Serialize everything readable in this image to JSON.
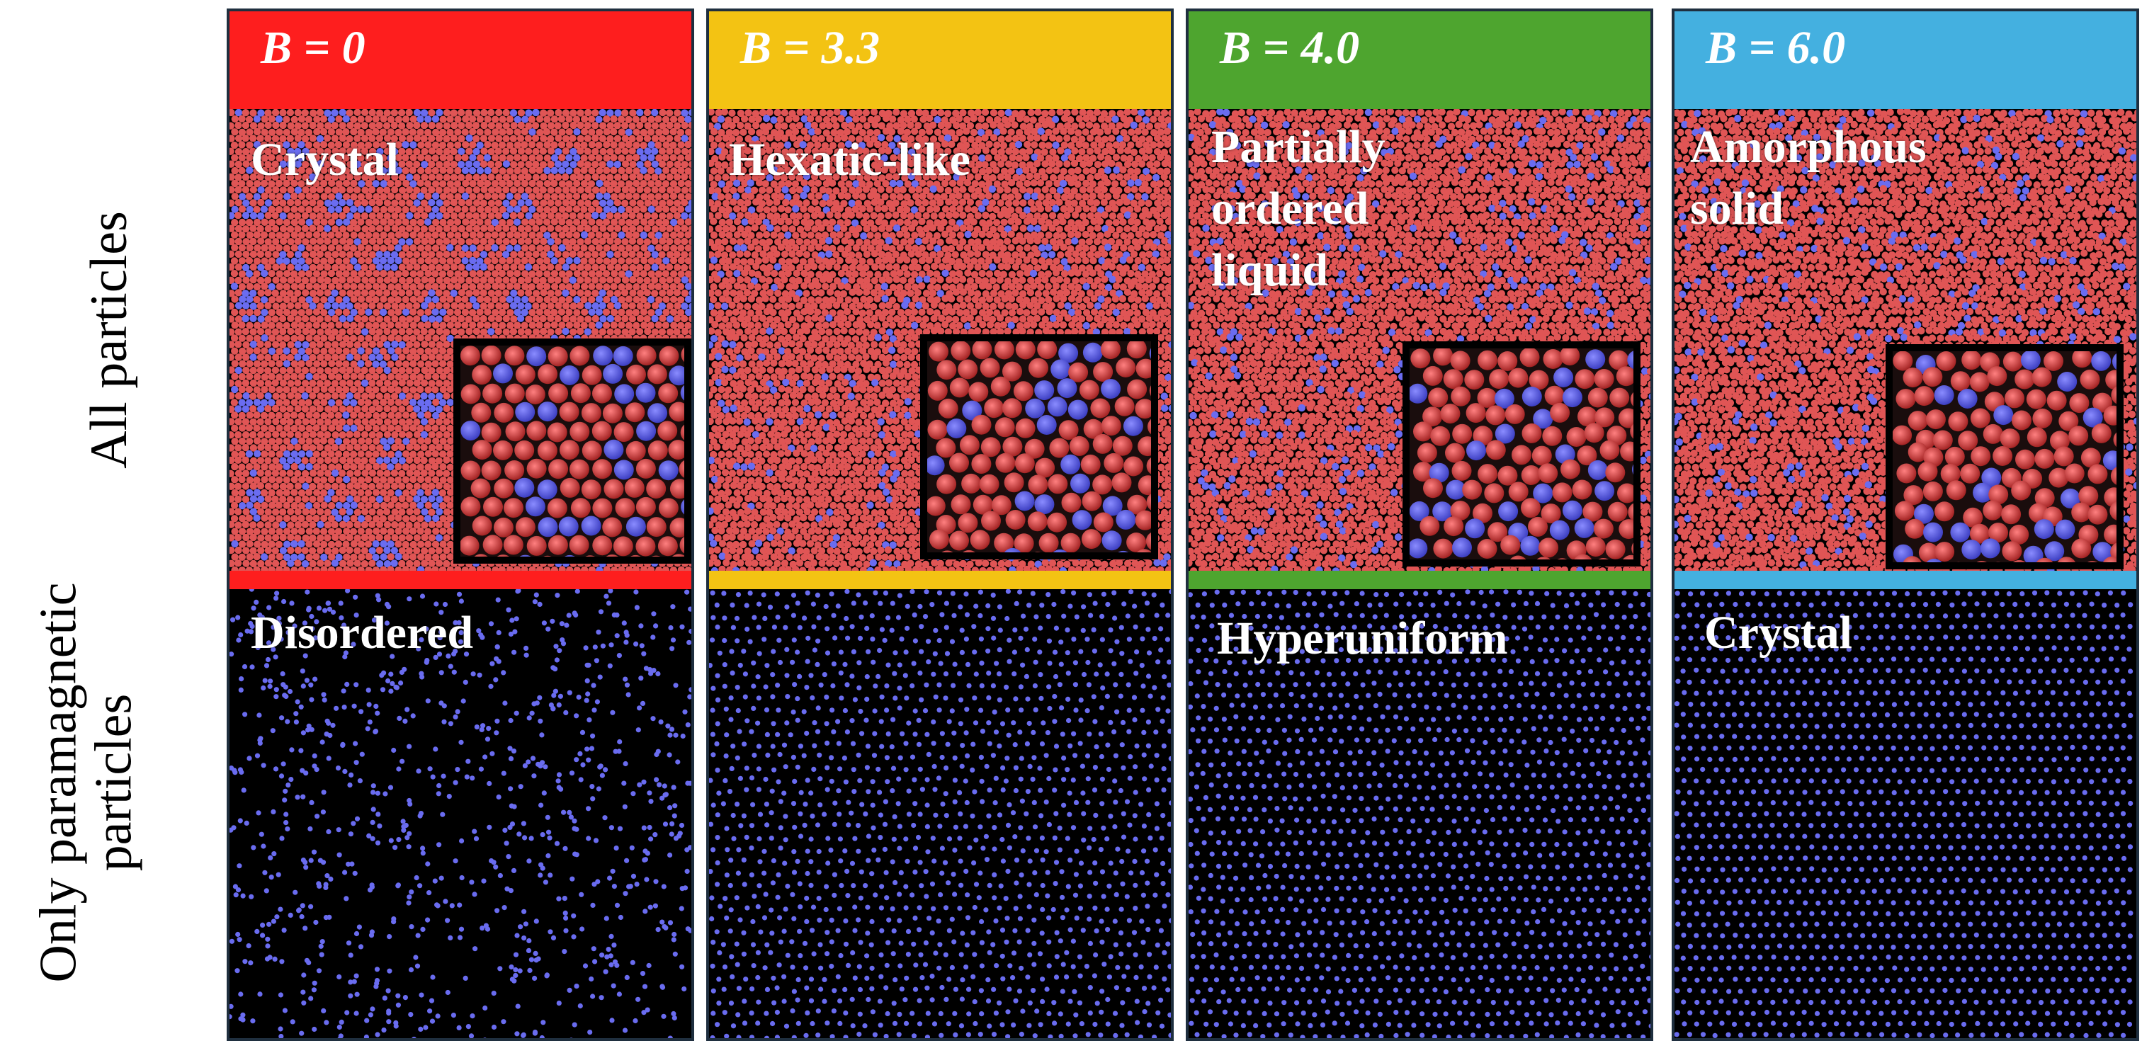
{
  "row_labels": {
    "top": "All particles",
    "bottom": "Only paramagnetic\nparticles"
  },
  "panels": [
    {
      "b_label": "B = 0",
      "top_phase": "Crystal",
      "bottom_phase": "Disordered",
      "color": "#fe1e1e"
    },
    {
      "b_label": "B = 3.3",
      "top_phase": "Hexatic-like",
      "bottom_phase": "",
      "color": "#f3c313"
    },
    {
      "b_label": "B = 4.0",
      "top_phase": "Partially\nordered\nliquid",
      "bottom_phase": "Hyperuniform",
      "color": "#4ea52f"
    },
    {
      "b_label": "B = 6.0",
      "top_phase": "Amorphous\nsolid",
      "bottom_phase": "Crystal",
      "color": "#44b0e0"
    }
  ],
  "colors": {
    "diamagnetic_particle": "#e05555",
    "paramagnetic_particle": "#6a6cf0",
    "background": "#000000"
  }
}
